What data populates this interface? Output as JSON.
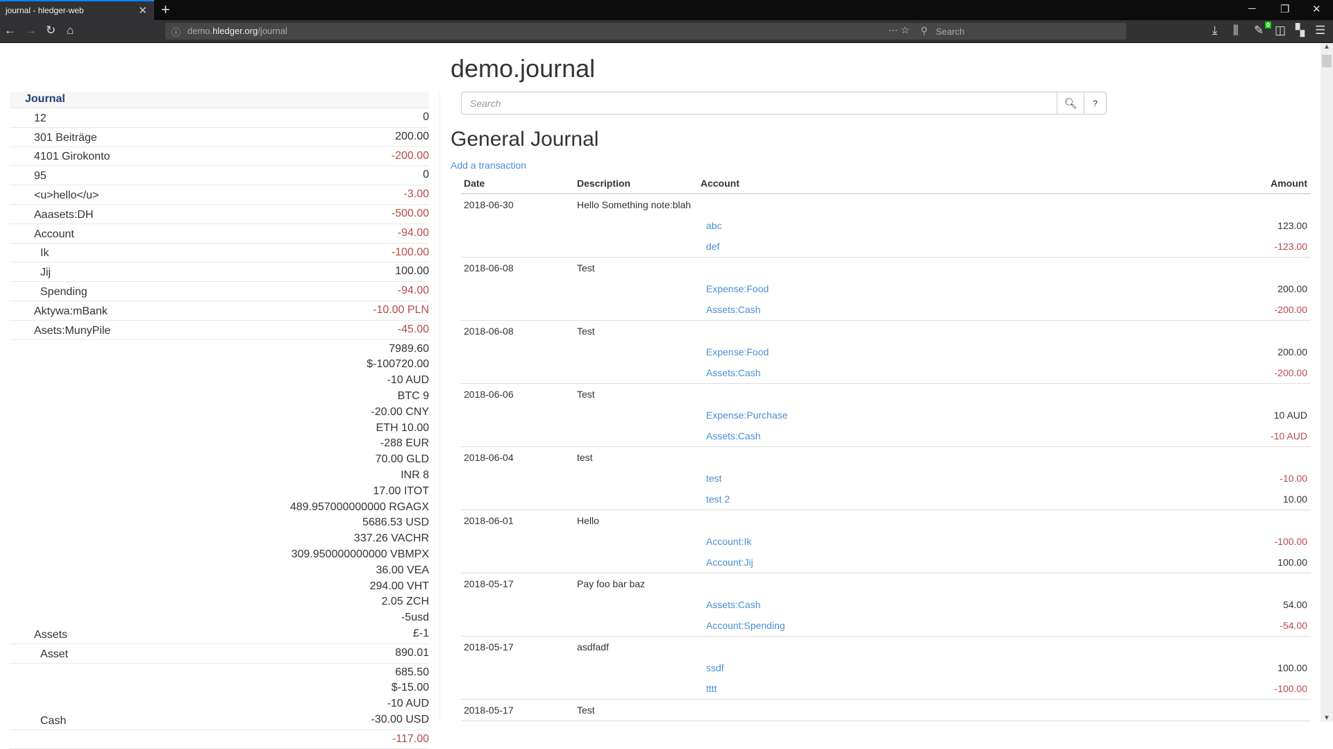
{
  "browser": {
    "tab_title": "journal - hledger-web",
    "url_host_pre": "demo.",
    "url_host": "hledger.org",
    "url_path": "/journal",
    "search_placeholder": "Search",
    "badge_count": "0"
  },
  "colors": {
    "negative": "#b94a48",
    "link": "#4a8fd6",
    "sidebar_header": "#1f3f77"
  },
  "page": {
    "site_title": "demo.journal",
    "search_placeholder": "Search",
    "help_label": "?",
    "heading": "General Journal",
    "add_link": "Add a transaction"
  },
  "sidebar": {
    "header": "Journal",
    "rows": [
      {
        "name": "12",
        "level": 1,
        "amounts": [
          "0"
        ]
      },
      {
        "name": "301 Beiträge",
        "level": 1,
        "amounts": [
          "200.00"
        ]
      },
      {
        "name": "4101 Girokonto",
        "level": 1,
        "amounts": [
          "-200.00"
        ]
      },
      {
        "name": "95",
        "level": 1,
        "amounts": [
          "0"
        ]
      },
      {
        "name": "<u>hello</u>",
        "level": 1,
        "amounts": [
          "-3.00"
        ]
      },
      {
        "name": "Aaasets:DH",
        "level": 1,
        "amounts": [
          "-500.00"
        ]
      },
      {
        "name": "Account",
        "level": 1,
        "amounts": [
          "-94.00"
        ]
      },
      {
        "name": "Ik",
        "level": 2,
        "amounts": [
          "-100.00"
        ]
      },
      {
        "name": "Jij",
        "level": 2,
        "amounts": [
          "100.00"
        ]
      },
      {
        "name": "Spending",
        "level": 2,
        "amounts": [
          "-94.00"
        ]
      },
      {
        "name": "Aktywa:mBank",
        "level": 1,
        "amounts": [
          "-10.00 PLN"
        ]
      },
      {
        "name": "Asets:MunyPile",
        "level": 1,
        "amounts": [
          "-45.00"
        ]
      },
      {
        "name": "Assets",
        "level": 1,
        "amounts": [
          "7989.60",
          "$-100720.00",
          "-10 AUD",
          "BTC 9",
          "-20.00 CNY",
          "ETH 10.00",
          "-288 EUR",
          "70.00 GLD",
          "INR 8",
          "17.00 ITOT",
          "489.957000000000 RGAGX",
          "5686.53 USD",
          "337.26 VACHR",
          "309.950000000000 VBMPX",
          "36.00 VEA",
          "294.00 VHT",
          "2.05 ZCH",
          "-5usd",
          "£-1"
        ]
      },
      {
        "name": "Asset",
        "level": 2,
        "amounts": [
          "890.01"
        ]
      },
      {
        "name": "Cash",
        "level": 2,
        "amounts": [
          "685.50",
          "$-15.00",
          "-10 AUD",
          "-30.00 USD"
        ]
      },
      {
        "name": "",
        "level": 2,
        "amounts": [
          "-117.00"
        ]
      }
    ]
  },
  "journal": {
    "columns": [
      "Date",
      "Description",
      "Account",
      "Amount"
    ],
    "transactions": [
      {
        "date": "2018-06-30",
        "description": "Hello Something note:blah",
        "postings": [
          {
            "account": "abc",
            "amount": "123.00"
          },
          {
            "account": "def",
            "amount": "-123.00"
          }
        ]
      },
      {
        "date": "2018-06-08",
        "description": "Test",
        "postings": [
          {
            "account": "Expense:Food",
            "amount": "200.00"
          },
          {
            "account": "Assets:Cash",
            "amount": "-200.00"
          }
        ]
      },
      {
        "date": "2018-06-08",
        "description": "Test",
        "postings": [
          {
            "account": "Expense:Food",
            "amount": "200.00"
          },
          {
            "account": "Assets:Cash",
            "amount": "-200.00"
          }
        ]
      },
      {
        "date": "2018-06-06",
        "description": "Test",
        "postings": [
          {
            "account": "Expense:Purchase",
            "amount": "10 AUD"
          },
          {
            "account": "Assets:Cash",
            "amount": "-10 AUD"
          }
        ]
      },
      {
        "date": "2018-06-04",
        "description": "test",
        "postings": [
          {
            "account": "test",
            "amount": "-10.00"
          },
          {
            "account": "test 2",
            "amount": "10.00"
          }
        ]
      },
      {
        "date": "2018-06-01",
        "description": "Hello",
        "postings": [
          {
            "account": "Account:Ik",
            "amount": "-100.00"
          },
          {
            "account": "Account:Jij",
            "amount": "100.00"
          }
        ]
      },
      {
        "date": "2018-05-17",
        "description": "Pay foo bar baz",
        "postings": [
          {
            "account": "Assets:Cash",
            "amount": "54.00"
          },
          {
            "account": "Account:Spending",
            "amount": "-54.00"
          }
        ]
      },
      {
        "date": "2018-05-17",
        "description": "asdfadf",
        "postings": [
          {
            "account": "ssdf",
            "amount": "100.00"
          },
          {
            "account": "tttt",
            "amount": "-100.00"
          }
        ]
      },
      {
        "date": "2018-05-17",
        "description": "Test",
        "postings": []
      }
    ]
  }
}
